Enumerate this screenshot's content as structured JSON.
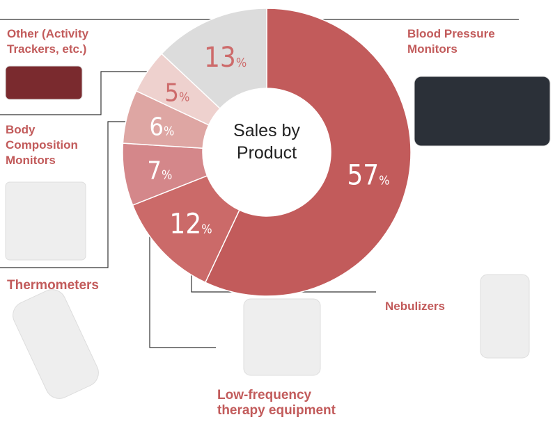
{
  "chart_data": {
    "type": "donut",
    "title": "Sales by Product",
    "categories": [
      "Blood Pressure Monitors",
      "Nebulizers",
      "Low-frequency therapy equipment",
      "Body Composition Monitors",
      "Thermometers",
      "Other (Activity Trackers, etc.)"
    ],
    "values": [
      57,
      12,
      7,
      6,
      5,
      13
    ],
    "unit": "%",
    "colors": [
      "#c25b5b",
      "#cb6a69",
      "#d4878a",
      "#dea6a3",
      "#eed1ce",
      "#dcdcdc"
    ],
    "value_label_colors": [
      "#ffffff",
      "#ffffff",
      "#ffffff",
      "#ffffff",
      "#cd6b6b",
      "#cd6b6b"
    ]
  }
}
